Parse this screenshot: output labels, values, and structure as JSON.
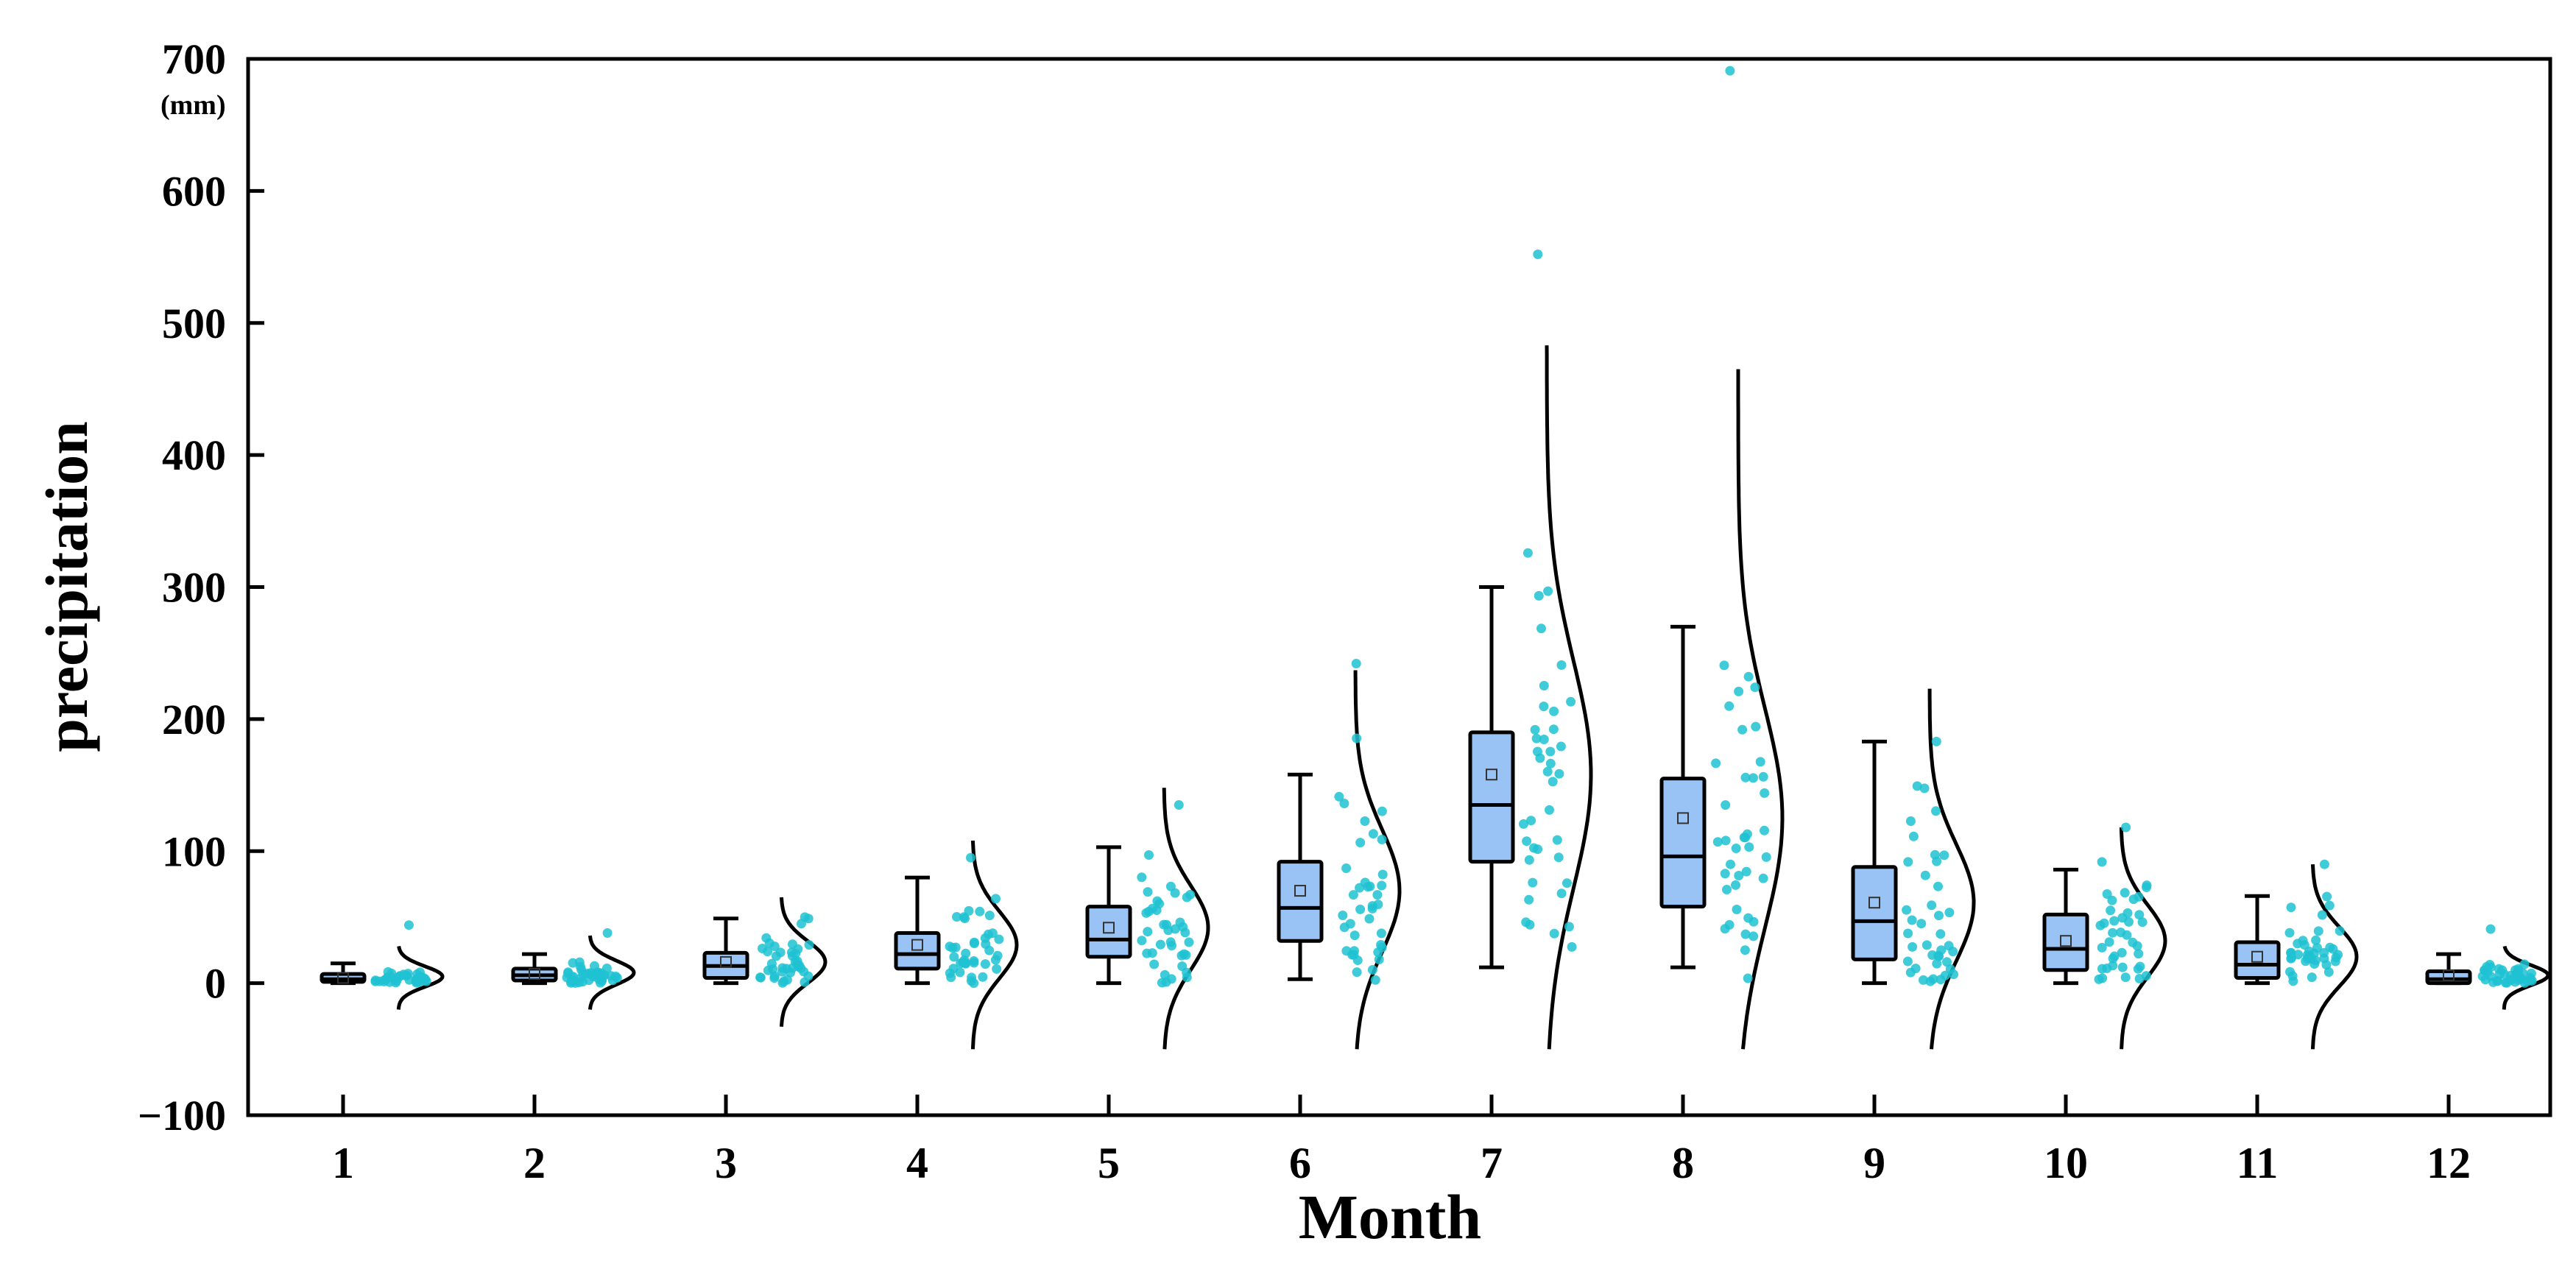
{
  "chart_data": {
    "type": "boxplot-raincloud",
    "xlabel": "Month",
    "ylabel": "precipitation",
    "unit_label": "(mm)",
    "ylim": [
      -100,
      700
    ],
    "yticks": [
      -100,
      0,
      100,
      200,
      300,
      400,
      500,
      600,
      700
    ],
    "ytick_labels": [
      "−100",
      "0",
      "100",
      "200",
      "300",
      "400",
      "500",
      "600",
      "700"
    ],
    "categories": [
      "1",
      "2",
      "3",
      "4",
      "5",
      "6",
      "7",
      "8",
      "9",
      "10",
      "11",
      "12"
    ],
    "box_color": "#99c2f5",
    "point_color": "#1fc2d2",
    "curve_color": "#000000",
    "series": [
      {
        "month": "1",
        "whisker_low": 0,
        "q1": 1,
        "median": 3,
        "q3": 7,
        "whisker_high": 15,
        "mean": 4,
        "max_point": 44,
        "curve_range": [
          -20,
          28
        ],
        "density_peak": 5
      },
      {
        "month": "2",
        "whisker_low": 0,
        "q1": 2,
        "median": 6,
        "q3": 11,
        "whisker_high": 22,
        "mean": 7,
        "max_point": 38,
        "curve_range": [
          -20,
          36
        ],
        "density_peak": 8
      },
      {
        "month": "3",
        "whisker_low": 0,
        "q1": 4,
        "median": 13,
        "q3": 23,
        "whisker_high": 49,
        "mean": 16,
        "max_point": 50,
        "curve_range": [
          -33,
          65
        ],
        "density_peak": 16
      },
      {
        "month": "4",
        "whisker_low": 0,
        "q1": 11,
        "median": 22,
        "q3": 38,
        "whisker_high": 80,
        "mean": 29,
        "max_point": 95,
        "curve_range": [
          -50,
          108
        ],
        "density_peak": 29
      },
      {
        "month": "5",
        "whisker_low": 0,
        "q1": 20,
        "median": 33,
        "q3": 58,
        "whisker_high": 103,
        "mean": 42,
        "max_point": 135,
        "curve_range": [
          -50,
          148
        ],
        "density_peak": 42
      },
      {
        "month": "6",
        "whisker_low": 3,
        "q1": 32,
        "median": 57,
        "q3": 92,
        "whisker_high": 158,
        "mean": 70,
        "max_point": 242,
        "curve_range": [
          -50,
          237
        ],
        "density_peak": 70
      },
      {
        "month": "7",
        "whisker_low": 12,
        "q1": 92,
        "median": 135,
        "q3": 190,
        "whisker_high": 300,
        "mean": 158,
        "max_point": 552,
        "curve_range": [
          -50,
          483
        ],
        "density_peak": 158
      },
      {
        "month": "8",
        "whisker_low": 12,
        "q1": 58,
        "median": 96,
        "q3": 155,
        "whisker_high": 270,
        "mean": 125,
        "max_point": 691,
        "curve_range": [
          -50,
          465
        ],
        "density_peak": 125
      },
      {
        "month": "9",
        "whisker_low": 0,
        "q1": 18,
        "median": 47,
        "q3": 88,
        "whisker_high": 183,
        "mean": 61,
        "max_point": 183,
        "curve_range": [
          -50,
          223
        ],
        "density_peak": 61
      },
      {
        "month": "10",
        "whisker_low": 0,
        "q1": 10,
        "median": 26,
        "q3": 52,
        "whisker_high": 86,
        "mean": 32,
        "max_point": 118,
        "curve_range": [
          -50,
          118
        ],
        "density_peak": 32
      },
      {
        "month": "11",
        "whisker_low": 0,
        "q1": 4,
        "median": 14,
        "q3": 31,
        "whisker_high": 66,
        "mean": 20,
        "max_point": 90,
        "curve_range": [
          -50,
          90
        ],
        "density_peak": 20
      },
      {
        "month": "12",
        "whisker_low": 0,
        "q1": 0,
        "median": 3,
        "q3": 9,
        "whisker_high": 22,
        "mean": 6,
        "max_point": 41,
        "curve_range": [
          -20,
          28
        ],
        "density_peak": 6
      }
    ]
  }
}
